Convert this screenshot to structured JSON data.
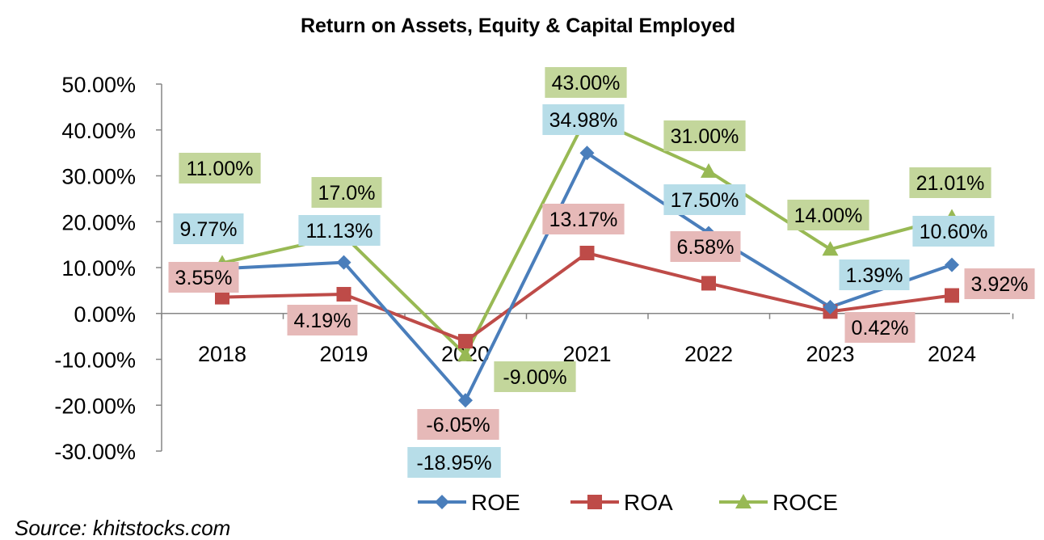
{
  "chart_data": {
    "type": "line",
    "title": "Return on Assets, Equity & Capital Employed",
    "categories": [
      "2018",
      "2019",
      "2020",
      "2021",
      "2022",
      "2023",
      "2024"
    ],
    "ylim": [
      -30,
      50
    ],
    "yticks": [
      "50.00%",
      "40.00%",
      "30.00%",
      "20.00%",
      "10.00%",
      "0.00%",
      "-10.00%",
      "-20.00%",
      "-30.00%"
    ],
    "grid": false,
    "legend_position": "bottom",
    "series": [
      {
        "name": "ROE",
        "color": "#4a7ebb",
        "marker": "diamond",
        "values": [
          9.77,
          11.13,
          -18.95,
          34.98,
          17.5,
          1.39,
          10.6
        ],
        "labels": [
          "9.77%",
          "11.13%",
          "-18.95%",
          "34.98%",
          "17.50%",
          "1.39%",
          "10.60%"
        ],
        "label_bg": "#b7dde8"
      },
      {
        "name": "ROA",
        "color": "#be4b48",
        "marker": "square",
        "values": [
          3.55,
          4.19,
          -6.05,
          13.17,
          6.58,
          0.42,
          3.92
        ],
        "labels": [
          "3.55%",
          "4.19%",
          "-6.05%",
          "13.17%",
          "6.58%",
          "0.42%",
          "3.92%"
        ],
        "label_bg": "#e6b9b8"
      },
      {
        "name": "ROCE",
        "color": "#98b954",
        "marker": "triangle",
        "values": [
          11.0,
          17.0,
          -9.0,
          43.0,
          31.0,
          14.0,
          21.01
        ],
        "labels": [
          "11.00%",
          "17.0%",
          "-9.00%",
          "43.00%",
          "31.00%",
          "14.00%",
          "21.01%"
        ],
        "label_bg": "#c3d69b"
      }
    ]
  },
  "source": "Source: khitstocks.com"
}
